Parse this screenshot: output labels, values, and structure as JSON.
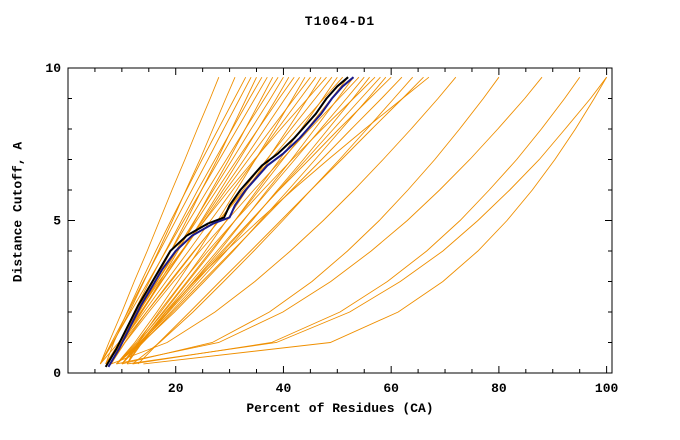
{
  "title": "T1064-D1",
  "chart_data": {
    "type": "line",
    "title": "T1064-D1",
    "xlabel": "Percent of Residues (CA)",
    "ylabel": "Distance Cutoff, A",
    "xlim": [
      0,
      101
    ],
    "ylim": [
      0,
      10
    ],
    "x_major_ticks": [
      20,
      40,
      60,
      80,
      100
    ],
    "x_minor_step": 5,
    "y_major_ticks": [
      0,
      5,
      10
    ],
    "y_minor_step": 1,
    "grid": false,
    "legend": "none",
    "model_color": "#ef8f00",
    "highlight_colors": [
      "#000000",
      "#1a1a8c"
    ],
    "y_levels": [
      0.3,
      1,
      2,
      3,
      4,
      5,
      6,
      7,
      8,
      9,
      9.7
    ],
    "model_curves_x": [
      [
        6,
        7.6,
        10,
        12.3,
        14.7,
        17,
        19.3,
        21.7,
        24,
        26.4,
        28
      ],
      [
        6,
        8.4,
        11.4,
        14.1,
        16.8,
        19.4,
        21.9,
        24.5,
        26.9,
        29.3,
        31
      ],
      [
        7,
        8.5,
        11,
        13.6,
        16.3,
        19.1,
        22,
        24.9,
        27.9,
        30.9,
        33
      ],
      [
        6,
        8.1,
        11.1,
        14,
        17,
        20,
        23,
        26,
        28.9,
        31.9,
        34
      ],
      [
        7,
        9.7,
        13,
        16.1,
        19.1,
        22,
        24.8,
        27.7,
        30.4,
        33.1,
        35
      ],
      [
        8,
        9.6,
        12.3,
        15.1,
        18.1,
        21.1,
        24.1,
        27.3,
        30.5,
        33.7,
        36
      ],
      [
        6,
        8.3,
        11.6,
        14.9,
        18.2,
        21.5,
        24.8,
        28.1,
        31.4,
        34.7,
        37
      ],
      [
        7,
        10,
        13.7,
        17.1,
        20.4,
        23.6,
        26.7,
        29.9,
        32.9,
        35.9,
        38
      ],
      [
        8,
        9.8,
        12.7,
        15.8,
        19.1,
        22.5,
        25.9,
        29.4,
        32.9,
        36.5,
        39
      ],
      [
        7,
        9.5,
        13,
        16.5,
        20,
        23.5,
        27,
        30.5,
        34,
        37.6,
        40
      ],
      [
        6,
        9.4,
        13.5,
        17.4,
        21.2,
        24.8,
        28.3,
        31.8,
        35.3,
        38.7,
        41
      ],
      [
        8,
        10,
        13.2,
        16.6,
        20.2,
        23.9,
        27.6,
        31.4,
        35.3,
        39.2,
        42
      ],
      [
        7,
        9.7,
        13.5,
        17.3,
        21.2,
        25,
        28.8,
        32.7,
        36.5,
        40.3,
        43
      ],
      [
        9,
        12.4,
        16.5,
        20.4,
        24.2,
        27.8,
        31.3,
        34.8,
        38.3,
        41.7,
        44
      ],
      [
        8,
        10.1,
        13.7,
        17.4,
        21.3,
        25.3,
        29.3,
        33.5,
        37.7,
        42,
        45
      ],
      [
        7,
        9.9,
        14.1,
        18.2,
        22.4,
        26.5,
        30.6,
        34.8,
        38.9,
        43.1,
        46
      ],
      [
        9,
        12.7,
        17.2,
        21.4,
        25.5,
        29.4,
        33.2,
        37,
        40.8,
        44.5,
        47
      ],
      [
        8,
        9.8,
        13.1,
        16.9,
        21.1,
        25.4,
        29.9,
        34.6,
        39.5,
        44.5,
        48
      ],
      [
        7,
        10.1,
        14.6,
        19.1,
        23.5,
        28,
        32.5,
        36.9,
        41.4,
        45.9,
        49
      ],
      [
        9,
        13,
        17.8,
        22.3,
        26.8,
        31,
        35.1,
        39.3,
        43.3,
        47.3,
        50
      ],
      [
        8,
        10.5,
        14.6,
        18.9,
        23.4,
        28.1,
        32.8,
        37.6,
        42.5,
        47.5,
        51
      ],
      [
        10,
        13.1,
        17.6,
        22.1,
        26.5,
        31,
        35.5,
        39.9,
        44.4,
        48.9,
        52
      ],
      [
        9,
        13.3,
        18.5,
        23.3,
        28.1,
        32.6,
        37,
        41.5,
        45.8,
        50.1,
        53
      ],
      [
        8,
        10.6,
        15,
        19.6,
        24.5,
        29.5,
        34.5,
        39.7,
        44.9,
        50.3,
        54
      ],
      [
        10,
        13.4,
        18.1,
        22.9,
        27.7,
        32.5,
        37.3,
        42.1,
        46.9,
        51.7,
        55
      ],
      [
        9,
        13.5,
        19.1,
        24.3,
        29.4,
        34.2,
        38.9,
        43.7,
        48.3,
        52.9,
        56
      ],
      [
        11,
        13,
        16.9,
        21.3,
        26,
        31,
        36.2,
        41.6,
        47.2,
        53,
        57
      ],
      [
        10,
        13.6,
        18.7,
        23.8,
        28.9,
        34,
        39.1,
        44.2,
        49.3,
        54.4,
        58
      ],
      [
        9,
        13.8,
        19.8,
        25.3,
        30.7,
        35.8,
        40.9,
        45.9,
        50.8,
        55.7,
        59
      ],
      [
        11,
        13.8,
        18.5,
        23.4,
        28.6,
        33.9,
        39.2,
        44.8,
        50.3,
        56,
        60
      ],
      [
        10,
        13.9,
        19.4,
        24.9,
        30.5,
        36,
        41.5,
        47.1,
        52.6,
        58.2,
        62
      ],
      [
        12,
        17,
        23.2,
        28.9,
        34.5,
        39.9,
        45.1,
        50.4,
        55.5,
        60.5,
        64
      ],
      [
        13,
        16.9,
        22.6,
        28.2,
        33.9,
        39.5,
        45.1,
        50.8,
        56.4,
        62.1,
        66
      ],
      [
        11,
        13.5,
        18.2,
        23.5,
        29.3,
        35.4,
        41.7,
        48.3,
        55.1,
        62.1,
        67
      ],
      [
        8,
        18.4,
        27.3,
        34.7,
        41.3,
        47.4,
        53.1,
        58.5,
        63.7,
        68.7,
        72
      ],
      [
        10,
        26.8,
        37.4,
        45.3,
        51.9,
        57.8,
        63.1,
        68.1,
        72.7,
        77.1,
        80
      ],
      [
        9,
        28,
        39.9,
        48.8,
        56.3,
        63,
        69,
        74.6,
        79.8,
        84.8,
        88
      ],
      [
        12,
        37.8,
        50.5,
        59.3,
        66.6,
        72.8,
        78.2,
        83.3,
        87.9,
        92.2,
        95
      ],
      [
        14,
        48.7,
        61.3,
        69.6,
        76.1,
        81.5,
        86.2,
        90.4,
        94.2,
        97.7,
        100
      ],
      [
        11,
        38.7,
        52.3,
        61.7,
        69.6,
        76.1,
        82,
        87.5,
        92.3,
        97,
        100
      ]
    ],
    "highlight_curves": [
      {
        "name": "highlight-curve-black",
        "color": "#000000",
        "points": [
          [
            7,
            0.2
          ],
          [
            9,
            0.8
          ],
          [
            11,
            1.5
          ],
          [
            13,
            2.2
          ],
          [
            15,
            2.8
          ],
          [
            17,
            3.4
          ],
          [
            19,
            4
          ],
          [
            22,
            4.5
          ],
          [
            26,
            4.9
          ],
          [
            29,
            5.1
          ],
          [
            30,
            5.5
          ],
          [
            32,
            6
          ],
          [
            34,
            6.4
          ],
          [
            36,
            6.8
          ],
          [
            39,
            7.2
          ],
          [
            42,
            7.7
          ],
          [
            44,
            8.1
          ],
          [
            46,
            8.5
          ],
          [
            48,
            9
          ],
          [
            50,
            9.4
          ],
          [
            52,
            9.7
          ]
        ]
      },
      {
        "name": "highlight-curve-navy",
        "color": "#1a1a8c",
        "points": [
          [
            7.5,
            0.2
          ],
          [
            9.5,
            0.8
          ],
          [
            11.5,
            1.5
          ],
          [
            13.5,
            2.2
          ],
          [
            15.5,
            2.8
          ],
          [
            17.5,
            3.4
          ],
          [
            20,
            4
          ],
          [
            23,
            4.5
          ],
          [
            27,
            4.9
          ],
          [
            30,
            5.1
          ],
          [
            31,
            5.5
          ],
          [
            33,
            6
          ],
          [
            35,
            6.4
          ],
          [
            37,
            6.8
          ],
          [
            40,
            7.2
          ],
          [
            43,
            7.7
          ],
          [
            45,
            8.1
          ],
          [
            47,
            8.5
          ],
          [
            49,
            9
          ],
          [
            51,
            9.4
          ],
          [
            53,
            9.7
          ]
        ]
      }
    ]
  }
}
